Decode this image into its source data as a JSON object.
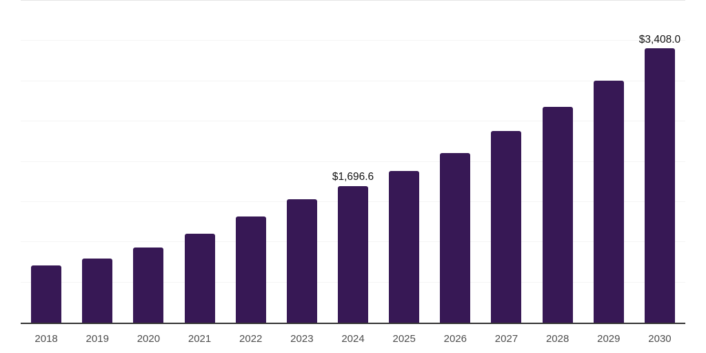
{
  "chart_data": {
    "type": "bar",
    "title": "",
    "xlabel": "",
    "ylabel": "",
    "categories": [
      "2018",
      "2019",
      "2020",
      "2021",
      "2022",
      "2023",
      "2024",
      "2025",
      "2026",
      "2027",
      "2028",
      "2029",
      "2030"
    ],
    "values": [
      710,
      800,
      930,
      1105,
      1315,
      1535,
      1696.6,
      1885,
      2105,
      2380,
      2680,
      3010,
      3408
    ],
    "data_labels": {
      "2024": "$1,696.6",
      "2030": "$3,408.0"
    },
    "ylim": [
      0,
      4000
    ],
    "grid_step": 500,
    "grid": "horizontal",
    "legend_position": "none",
    "value_format": "USD"
  },
  "style": {
    "bar_color": "#371855",
    "axis_color": "#333333",
    "grid_color": "#f4f4f4",
    "grid_top_color": "#e5e5e5",
    "tick_label_color": "#4d4d4d",
    "data_label_color": "#111111",
    "background_color": "#ffffff"
  }
}
